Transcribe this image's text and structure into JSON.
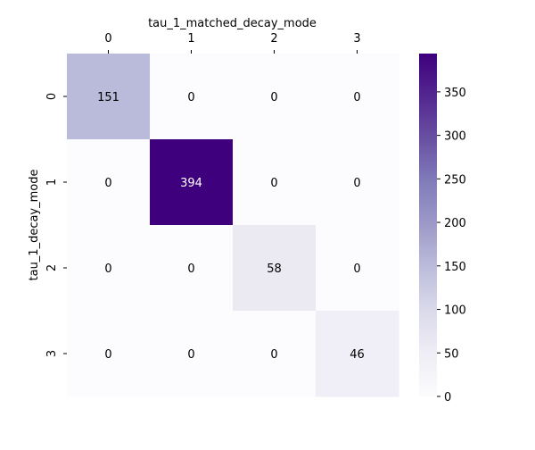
{
  "chart_data": {
    "type": "heatmap",
    "xlabel": "tau_1_matched_decay_mode",
    "ylabel": "tau_1_decay_mode",
    "x_ticks": [
      "0",
      "1",
      "2",
      "3"
    ],
    "y_ticks": [
      "0",
      "1",
      "2",
      "3"
    ],
    "x_axis_position": "top",
    "values": [
      [
        151,
        0,
        0,
        0
      ],
      [
        0,
        394,
        0,
        0
      ],
      [
        0,
        0,
        58,
        0
      ],
      [
        0,
        0,
        0,
        46
      ]
    ],
    "colormap": "Purples",
    "color_range": [
      0,
      394
    ],
    "colorbar_ticks": [
      0,
      50,
      100,
      150,
      200,
      250,
      300,
      350
    ],
    "colorbar_tick_labels": [
      "0",
      "50",
      "100",
      "150",
      "200",
      "250",
      "300",
      "350"
    ],
    "grid": false
  }
}
